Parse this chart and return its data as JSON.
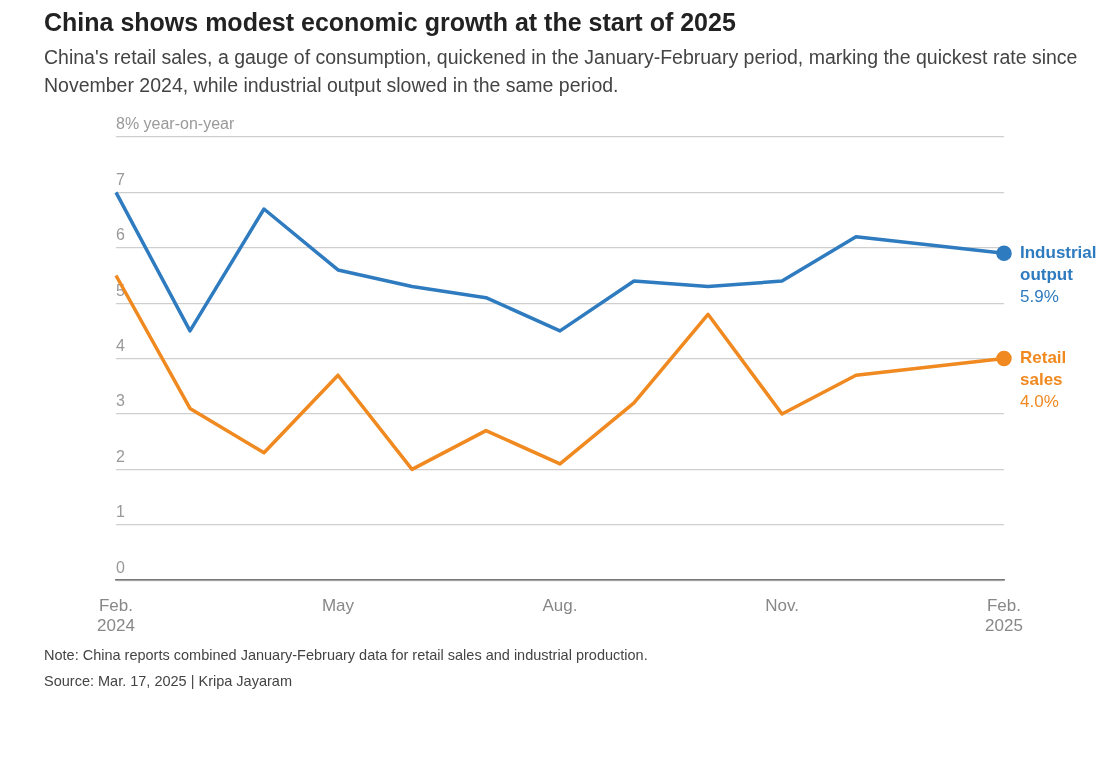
{
  "chart_data": {
    "type": "line",
    "title": "China shows modest economic growth at the start of 2025",
    "subtitle": "China's retail sales, a gauge of consumption, quickened in the January-February period, marking the quickest rate since November 2024, while industrial output slowed in the same period.",
    "categories": [
      "Feb.\n2024",
      null,
      null,
      "May",
      null,
      null,
      "Aug.",
      null,
      null,
      "Nov.",
      null,
      null,
      "Feb.\n2025"
    ],
    "series": [
      {
        "name": "Industrial output",
        "color": "#2f7bbf",
        "values": [
          7.0,
          4.5,
          6.7,
          5.6,
          5.3,
          5.1,
          4.5,
          5.4,
          5.3,
          5.4,
          6.2,
          null,
          5.9
        ],
        "value_labels": [
          null,
          null,
          null,
          null,
          null,
          null,
          null,
          null,
          null,
          null,
          null,
          null,
          "5.9%"
        ]
      },
      {
        "name": "Retail sales",
        "color": "#f0891f",
        "values": [
          5.5,
          3.1,
          2.3,
          3.7,
          2.0,
          2.7,
          2.1,
          3.2,
          4.8,
          3.0,
          3.7,
          null,
          4.0
        ],
        "value_labels": [
          null,
          null,
          null,
          null,
          null,
          null,
          null,
          null,
          null,
          null,
          null,
          null,
          "4.0%"
        ]
      }
    ],
    "ylim": [
      0,
      8
    ],
    "yticks": [
      0,
      1,
      2,
      3,
      4,
      5,
      6,
      7,
      {
        "value": 8,
        "label": "8% year-on-year"
      }
    ],
    "grid": "y",
    "legend": false,
    "annotations": [
      "Note: China reports combined January-February data for retail sales and industrial production.",
      "Source: Mar. 17, 2025 | Kripa Jayaram"
    ]
  }
}
